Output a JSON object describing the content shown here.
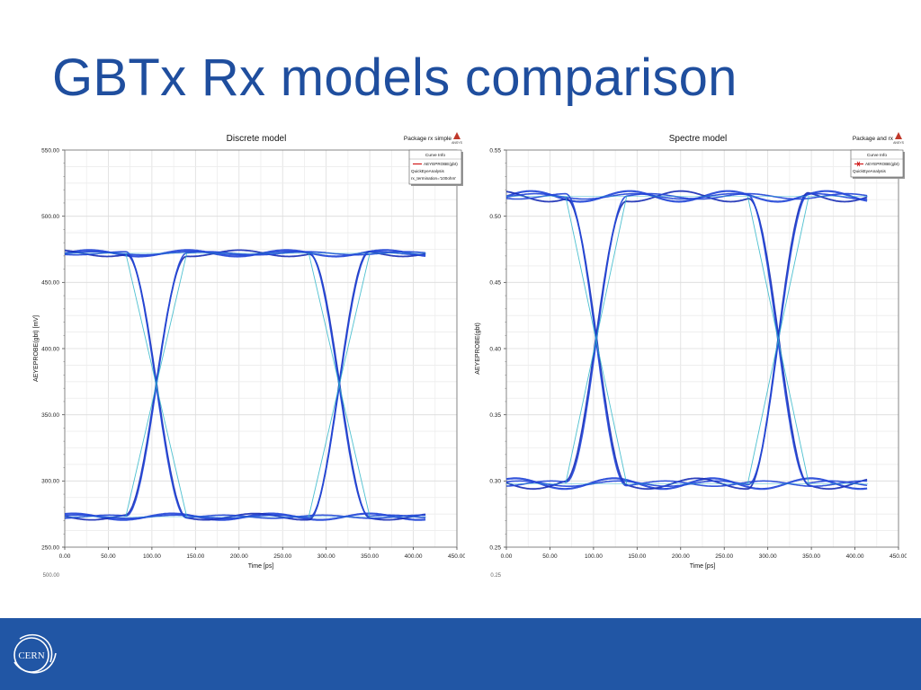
{
  "slide": {
    "title": "GBTx Rx models comparison",
    "logo_text": "CERN"
  },
  "colors": {
    "title": "#1f4e9e",
    "footer": "#2156a5",
    "trace": "#2346d8",
    "trace_dark": "#1a2fb5",
    "crossing": "#2fb6c8",
    "legend_red": "#cc0000"
  },
  "chart_data": [
    {
      "type": "line",
      "title": "Discrete model",
      "corner_label": "Package rx simple",
      "badge": "ANSYS",
      "xlabel": "Time [ps]",
      "ylabel": "AEYEPROBE(gbt) [mV]",
      "xlim": [
        0,
        450
      ],
      "ylim": [
        250,
        550
      ],
      "x_ticks": [
        "0.00",
        "50.00",
        "100.00",
        "150.00",
        "200.00",
        "250.00",
        "300.00",
        "350.00",
        "400.00",
        "450.00"
      ],
      "y_ticks": [
        "250.00",
        "300.00",
        "350.00",
        "400.00",
        "450.00",
        "500.00",
        "550.00"
      ],
      "clipped_label": "500.00",
      "legend": {
        "header": "Curve Info",
        "lines": [
          "AEYEPROBE(gbt)",
          "QuickEyeAnalysis",
          "rx_termination='100ohm'"
        ],
        "marker": "line"
      },
      "eye": {
        "x_end": 415,
        "high": 472,
        "low": 273,
        "crossings": [
          105,
          315
        ],
        "overshoot": 3
      }
    },
    {
      "type": "line",
      "title": "Spectre model",
      "corner_label": "Package and rx",
      "badge": "ANSYS",
      "xlabel": "Time [ps]",
      "ylabel": "AEYEPROBE(gbt)",
      "xlim": [
        0,
        450
      ],
      "ylim": [
        0.25,
        0.55
      ],
      "x_ticks": [
        "0.00",
        "50.00",
        "100.00",
        "150.00",
        "200.00",
        "250.00",
        "300.00",
        "350.00",
        "400.00",
        "450.00"
      ],
      "y_ticks": [
        "0.25",
        "0.30",
        "0.35",
        "0.40",
        "0.45",
        "0.50",
        "0.55"
      ],
      "clipped_label": "0.25",
      "legend": {
        "header": "Curve Info",
        "lines": [
          "AEYEPROBE(gbt)",
          "QuickEyeAnalysis"
        ],
        "marker": "cross"
      },
      "eye": {
        "x_end": 415,
        "high": 0.515,
        "low": 0.298,
        "crossings": [
          103,
          312
        ],
        "overshoot": 0.005
      }
    }
  ]
}
